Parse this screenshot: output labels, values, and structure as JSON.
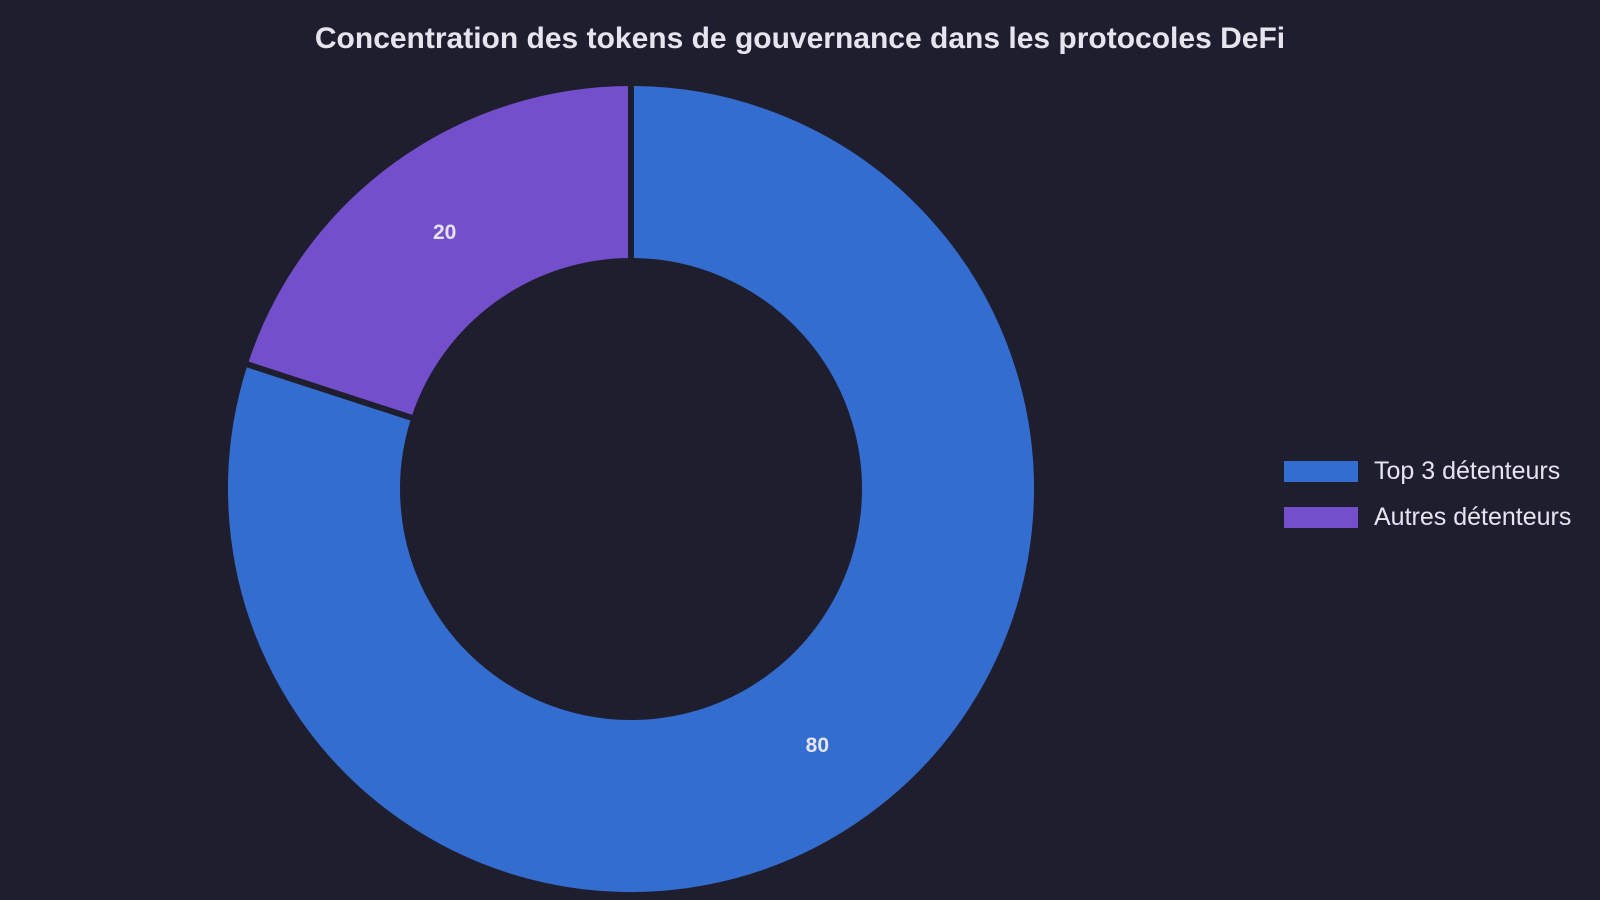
{
  "chart_data": {
    "type": "pie",
    "title": "Concentration des tokens de gouvernance dans les protocoles DeFi",
    "categories": [
      "Top 3 détenteurs",
      "Autres détenteurs"
    ],
    "values": [
      80,
      20
    ],
    "colors": [
      "#346dd0",
      "#744fcc"
    ],
    "data_labels": [
      "80",
      "20"
    ],
    "donut": true,
    "legend_position": "right"
  }
}
